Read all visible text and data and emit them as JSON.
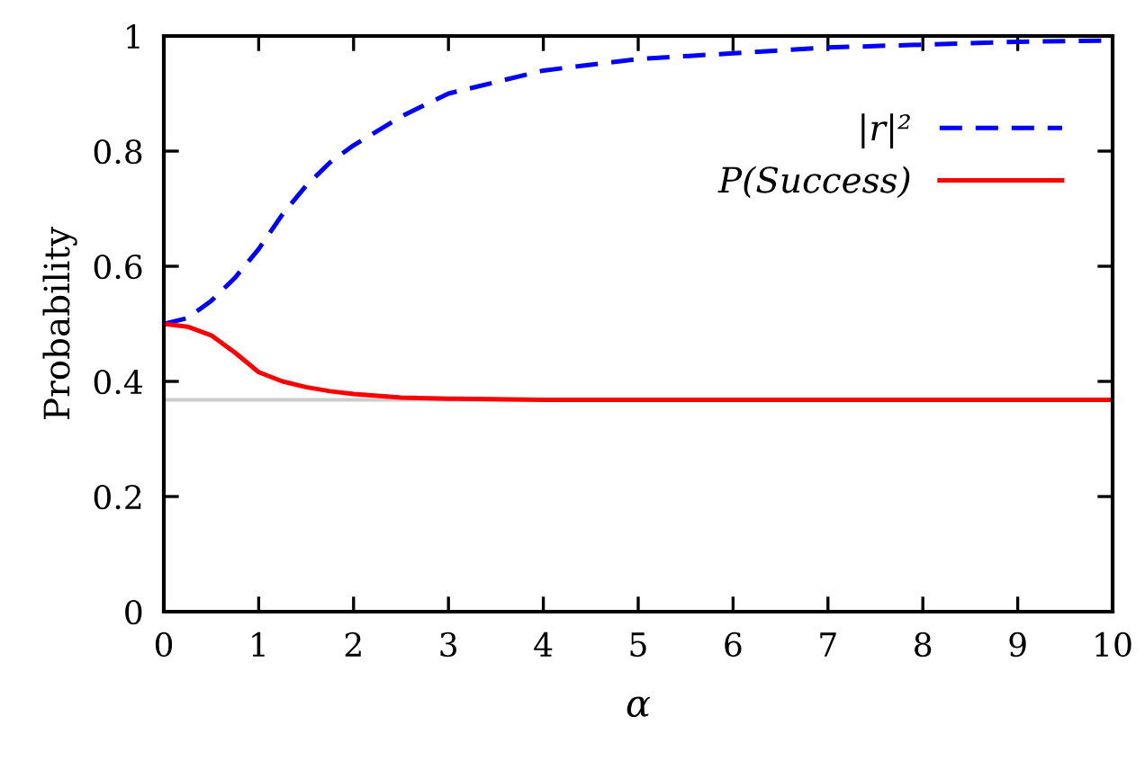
{
  "chart_data": {
    "type": "line",
    "xlabel": "α",
    "ylabel": "Probability",
    "series": [
      {
        "name": "|r|²",
        "color": "#0000ff",
        "line_style": "dashed",
        "x": [
          0,
          0.25,
          0.5,
          0.75,
          1,
          1.25,
          1.5,
          1.75,
          2,
          2.5,
          3,
          3.5,
          4,
          5,
          6,
          7,
          8,
          9,
          10
        ],
        "values": [
          0.5,
          0.51,
          0.54,
          0.58,
          0.63,
          0.69,
          0.74,
          0.78,
          0.81,
          0.86,
          0.9,
          0.92,
          0.94,
          0.96,
          0.97,
          0.98,
          0.985,
          0.99,
          0.992
        ]
      },
      {
        "name": "P(Success)",
        "color": "#ff0000",
        "line_style": "solid",
        "x": [
          0,
          0.25,
          0.5,
          0.75,
          1,
          1.25,
          1.5,
          1.75,
          2,
          2.5,
          3,
          4,
          5,
          6,
          7,
          8,
          9,
          10
        ],
        "values": [
          0.5,
          0.495,
          0.48,
          0.45,
          0.416,
          0.4,
          0.39,
          0.383,
          0.378,
          0.372,
          0.37,
          0.368,
          0.368,
          0.368,
          0.368,
          0.368,
          0.368,
          0.368
        ]
      }
    ],
    "ref_lines": [
      {
        "axis": "y",
        "value": 0.368,
        "color": "#cccccc"
      }
    ],
    "xlim": [
      0,
      10
    ],
    "ylim": [
      0,
      1
    ],
    "xticks": [
      0,
      1,
      2,
      3,
      4,
      5,
      6,
      7,
      8,
      9,
      10
    ],
    "yticks": [
      0,
      0.2,
      0.4,
      0.6,
      0.8,
      1
    ],
    "grid": false,
    "legend": "top right"
  }
}
